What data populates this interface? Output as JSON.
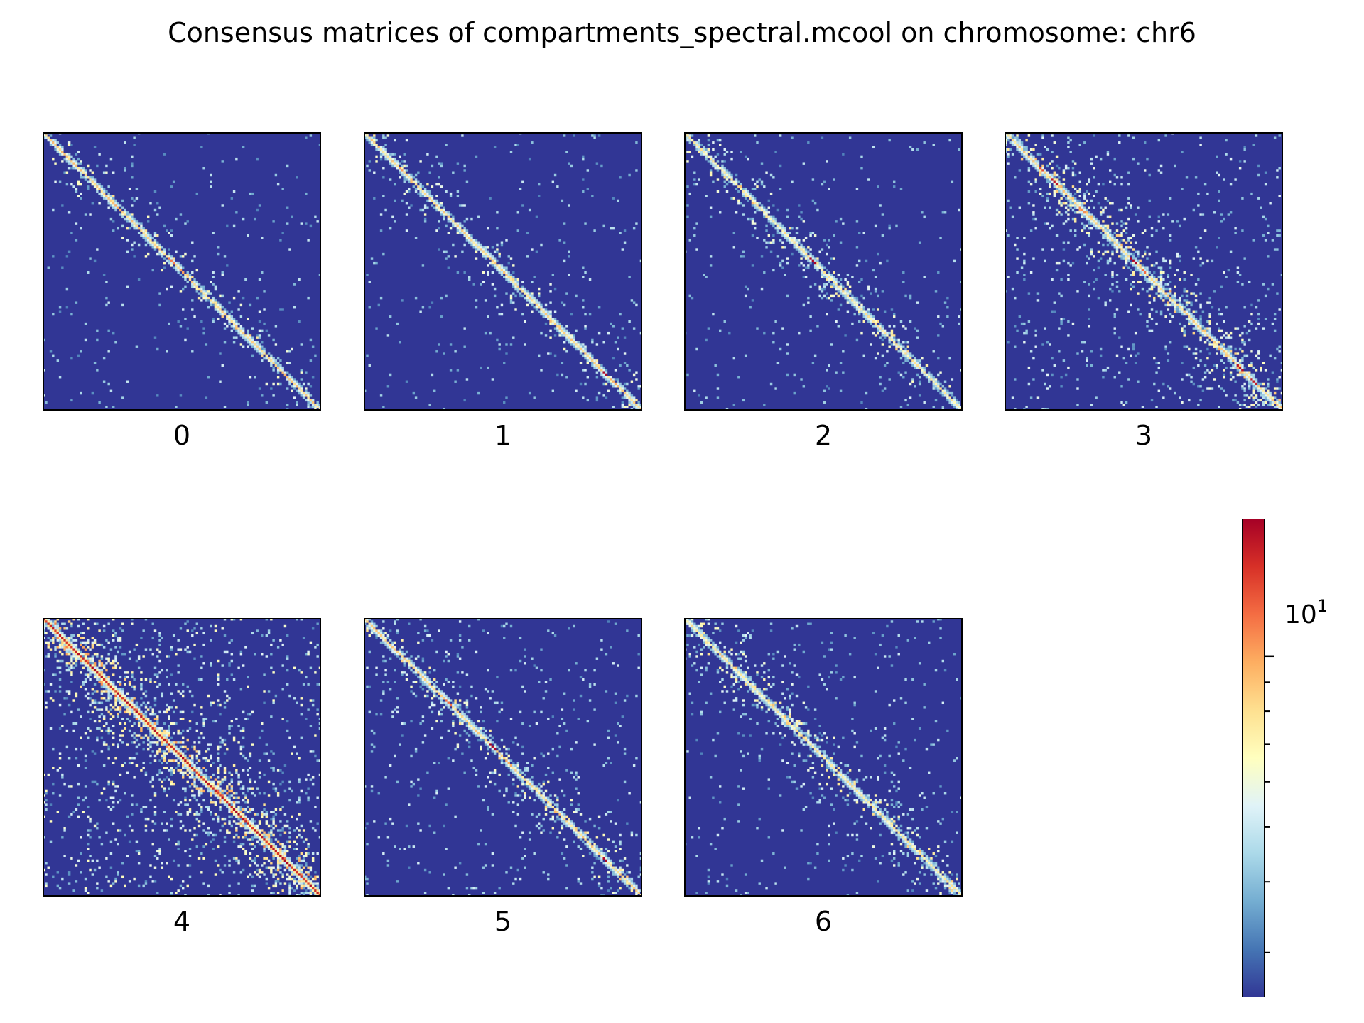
{
  "title": "Consensus matrices of compartments_spectral.mcool on chromosome: chr6",
  "colorbar": {
    "colormap": "RdYlBu_r",
    "scale": "log",
    "tick_label_base": "10",
    "tick_label_exp": "1",
    "major_tick_value": 10,
    "range": [
      2.5,
      17.5
    ]
  },
  "chart_data": [
    {
      "type": "heatmap",
      "label": "0",
      "diag_level": 0.62,
      "noise_level": 0.06,
      "hotspots": [
        {
          "pos": 0.27,
          "value": 0.7
        },
        {
          "pos": 0.46,
          "value": 0.78
        },
        {
          "pos": 0.5,
          "value": 0.72
        },
        {
          "pos": 0.87,
          "value": 0.68
        }
      ]
    },
    {
      "type": "heatmap",
      "label": "1",
      "diag_level": 0.6,
      "noise_level": 0.06,
      "hotspots": [
        {
          "pos": 0.13,
          "value": 0.72
        },
        {
          "pos": 0.87,
          "value": 0.98
        },
        {
          "pos": 0.9,
          "value": 0.7
        }
      ]
    },
    {
      "type": "heatmap",
      "label": "2",
      "diag_level": 0.55,
      "noise_level": 0.07,
      "hotspots": [
        {
          "pos": 0.46,
          "value": 0.99
        },
        {
          "pos": 0.7,
          "value": 0.6
        }
      ]
    },
    {
      "type": "heatmap",
      "label": "3",
      "diag_level": 0.6,
      "noise_level": 0.14,
      "hotspots": [
        {
          "pos": 0.13,
          "value": 0.85
        },
        {
          "pos": 0.18,
          "value": 0.95
        },
        {
          "pos": 0.28,
          "value": 0.75
        },
        {
          "pos": 0.46,
          "value": 0.99
        },
        {
          "pos": 0.5,
          "value": 0.8
        },
        {
          "pos": 0.85,
          "value": 0.96
        },
        {
          "pos": 0.9,
          "value": 0.94
        }
      ]
    },
    {
      "type": "heatmap",
      "label": "4",
      "diag_level": 0.92,
      "noise_level": 0.24,
      "hotspots": [
        {
          "pos": 0.18,
          "value": 0.99
        },
        {
          "pos": 0.3,
          "value": 0.98
        },
        {
          "pos": 0.5,
          "value": 0.99
        },
        {
          "pos": 0.7,
          "value": 0.98
        },
        {
          "pos": 0.88,
          "value": 0.99
        }
      ]
    },
    {
      "type": "heatmap",
      "label": "5",
      "diag_level": 0.6,
      "noise_level": 0.09,
      "hotspots": [
        {
          "pos": 0.3,
          "value": 0.8
        },
        {
          "pos": 0.46,
          "value": 0.99
        },
        {
          "pos": 0.52,
          "value": 0.7
        },
        {
          "pos": 0.87,
          "value": 0.98
        }
      ]
    },
    {
      "type": "heatmap",
      "label": "6",
      "diag_level": 0.55,
      "noise_level": 0.09,
      "hotspots": [
        {
          "pos": 0.13,
          "value": 0.65
        },
        {
          "pos": 0.43,
          "value": 0.62
        },
        {
          "pos": 0.9,
          "value": 0.55
        }
      ]
    }
  ]
}
